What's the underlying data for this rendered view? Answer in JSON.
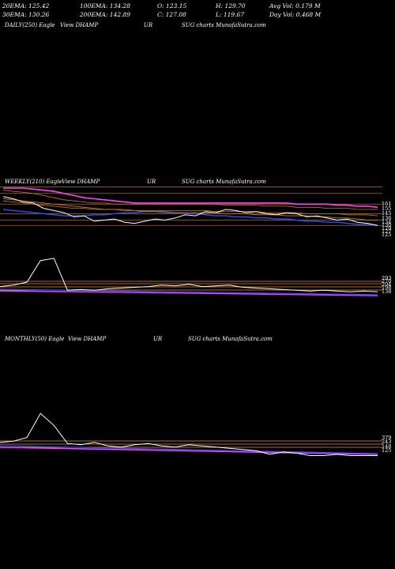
{
  "stats": {
    "row1": [
      "20EMA: 125.42",
      "100EMA: 134.28",
      "O: 123.15",
      "H: 129.70",
      "Avg Vol: 0.179  M"
    ],
    "row2": [
      "30EMA: 130.26",
      "200EMA: 142.89",
      "C: 127.08",
      "L: 119.67",
      "Day Vol: 0.468  M"
    ]
  },
  "panels": [
    {
      "title": [
        "DAILY(250) Eagle",
        "View  DHAMP",
        "UR",
        "SUG charts MunafaSutra.com"
      ]
    },
    {
      "title": [
        "WEEKLY(210) Eagle",
        "View  DHAMP",
        "UR",
        "SUG charts MunafaSutra.com"
      ],
      "labels": [
        "161",
        "155",
        "145",
        "136",
        "134",
        "130",
        "129",
        "127",
        "125"
      ]
    },
    {
      "title": [
        "",
        "",
        "",
        ""
      ],
      "labels": [
        "293",
        "270",
        "204",
        "198",
        "138"
      ]
    },
    {
      "title": [
        "MONTHLY(50) Eagle",
        "View  DHAMP",
        "UR",
        "SUG charts MunafaSutra.com"
      ],
      "labels": [
        "379",
        "243",
        "148",
        "125"
      ]
    }
  ],
  "colors": {
    "price": "#ffffff",
    "ema_orange": "#c8782a",
    "ema_blue": "#2850ff",
    "ema_magenta": "#ff40ff",
    "grid_orange": "#b46a1e"
  },
  "chart_data": {
    "type": "line",
    "title": "",
    "xlabel": "",
    "ylabel": "",
    "weekly": {
      "series": [
        {
          "values": [
            152,
            150,
            147,
            146,
            141,
            139,
            137,
            133,
            134,
            129,
            130,
            131,
            128,
            127,
            129,
            131,
            130,
            132,
            135,
            134,
            138,
            137,
            140,
            139,
            137,
            138,
            136,
            135,
            137,
            136,
            133,
            134,
            132,
            130,
            131,
            128,
            127,
            125
          ]
        },
        {
          "values": [
            150,
            149,
            148,
            147,
            146,
            145,
            144,
            143,
            142,
            141,
            140,
            140,
            139,
            139,
            138,
            138,
            138,
            137,
            137,
            137,
            137,
            137,
            136,
            136,
            136,
            135,
            135,
            135,
            134,
            134,
            134,
            133,
            133,
            132,
            132,
            131,
            130,
            130
          ]
        },
        {
          "values": [
            140,
            139,
            138,
            137,
            136,
            135,
            134,
            134,
            134,
            135,
            135,
            136,
            137,
            137,
            138,
            138,
            137,
            137,
            136,
            136,
            135,
            134,
            134,
            133,
            133,
            132,
            132,
            131,
            131,
            130,
            129,
            129,
            128,
            128,
            127,
            126,
            126,
            125
          ]
        }
      ]
    },
    "volume": {
      "series": [
        {
          "values": [
            0.1,
            0.12,
            0.16,
            0.45,
            0.48,
            0.05,
            0.06,
            0.05,
            0.07,
            0.08,
            0.09,
            0.1,
            0.12,
            0.11,
            0.13,
            0.1,
            0.11,
            0.12,
            0.09,
            0.08,
            0.07,
            0.06,
            0.05,
            0.04,
            0.05,
            0.04,
            0.03,
            0.04,
            0.03
          ]
        }
      ]
    },
    "monthly": {
      "series": [
        {
          "values": [
            0.1,
            0.11,
            0.14,
            0.34,
            0.24,
            0.09,
            0.08,
            0.1,
            0.07,
            0.06,
            0.08,
            0.09,
            0.07,
            0.06,
            0.08,
            0.07,
            0.06,
            0.05,
            0.04,
            0.03,
            0.0,
            0.02,
            0.01,
            -0.01,
            -0.01,
            0.0,
            -0.01,
            -0.01,
            -0.01
          ]
        }
      ]
    }
  }
}
